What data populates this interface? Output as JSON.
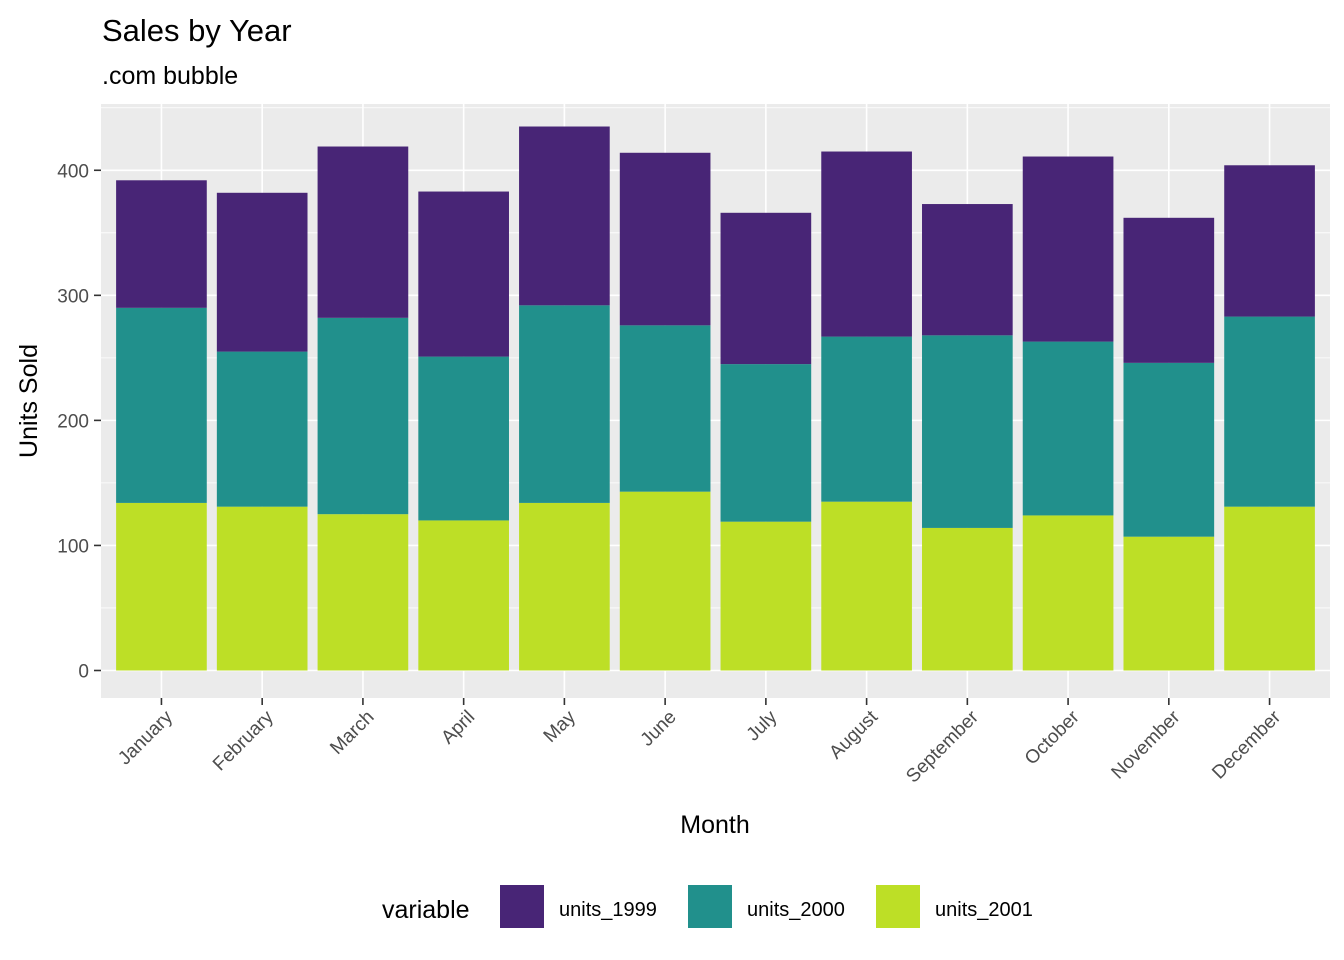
{
  "chart_data": {
    "type": "bar",
    "stacked": true,
    "title": "Sales by Year",
    "subtitle": ".com bubble",
    "xlabel": "Month",
    "ylabel": "Units Sold",
    "categories": [
      "January",
      "February",
      "March",
      "April",
      "May",
      "June",
      "July",
      "August",
      "September",
      "October",
      "November",
      "December"
    ],
    "series": [
      {
        "name": "units_2001",
        "color": "#bddf26",
        "values": [
          134,
          131,
          125,
          120,
          134,
          143,
          119,
          135,
          114,
          124,
          107,
          131
        ]
      },
      {
        "name": "units_2000",
        "color": "#21908c",
        "values": [
          156,
          124,
          157,
          131,
          158,
          133,
          126,
          132,
          154,
          139,
          139,
          152
        ]
      },
      {
        "name": "units_1999",
        "color": "#482576",
        "values": [
          102,
          127,
          137,
          132,
          143,
          138,
          121,
          148,
          105,
          148,
          116,
          121
        ]
      }
    ],
    "ylim": [
      -22,
      453
    ],
    "yticks": [
      0,
      100,
      200,
      300,
      400
    ],
    "ytick_labels": [
      "0",
      "100",
      "200",
      "300",
      "400"
    ],
    "grid": true,
    "panel_background": "#ebebeb",
    "grid_color": "#ffffff",
    "legend": {
      "title": "variable",
      "position": "bottom",
      "order": [
        "units_1999",
        "units_2000",
        "units_2001"
      ]
    }
  }
}
